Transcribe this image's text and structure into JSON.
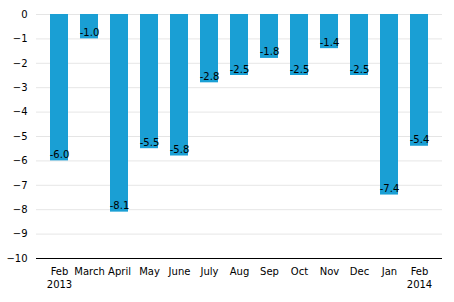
{
  "chart_data": {
    "type": "bar",
    "categories": [
      "Feb",
      "March",
      "April",
      "May",
      "June",
      "July",
      "Aug",
      "Sep",
      "Oct",
      "Nov",
      "Dec",
      "Jan",
      "Feb"
    ],
    "values": [
      -6.0,
      -1.0,
      -8.1,
      -5.5,
      -5.8,
      -2.8,
      -2.5,
      -1.8,
      -2.5,
      -1.4,
      -2.5,
      -7.4,
      -5.4
    ],
    "value_labels": [
      "-6.0",
      "-1.0",
      "-8.1",
      "-5.5",
      "-5.8",
      "-2.8",
      "-2.5",
      "-1.8",
      "-2.5",
      "-1.4",
      "-2.5",
      "-7.4",
      "-5.4"
    ],
    "data_labels": true,
    "color": "#1a9fd4",
    "ylim": [
      -10,
      0
    ],
    "yticks": [
      0,
      -1,
      -2,
      -3,
      -4,
      -5,
      -6,
      -7,
      -8,
      -9,
      -10
    ],
    "grid": true,
    "annotations": [
      {
        "text": "2013",
        "x": 0
      },
      {
        "text": "2014",
        "x": 12
      }
    ]
  }
}
